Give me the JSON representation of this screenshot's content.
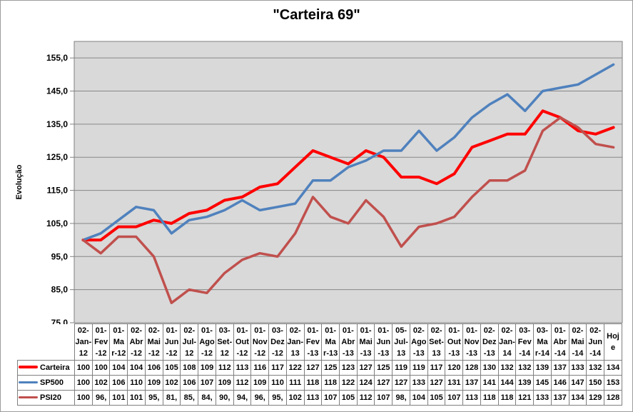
{
  "chart_data": {
    "type": "line",
    "title": "\"Carteira 69\"",
    "ylabel": "Evolução",
    "ylim": [
      75,
      160
    ],
    "ytick_step": 10,
    "ytick_labels": [
      "75,0",
      "85,0",
      "95,0",
      "105,0",
      "115,0",
      "125,0",
      "135,0",
      "145,0",
      "155,0"
    ],
    "grid": "horizontal",
    "plot_bg": "#d9d9d9",
    "gridline_color": "#878787",
    "axis_color": "#808080",
    "legend_position": "data-table-left",
    "categories": [
      "02-Jan-12",
      "01-Fev-12",
      "01-Mar-12",
      "02-Abr-12",
      "02-Mai-12",
      "01-Jun-12",
      "02-Jul-12",
      "01-Ago-12",
      "03-Set-12",
      "01-Out-12",
      "01-Nov-12",
      "03-Dez-12",
      "02-Jan-13",
      "01-Fev-13",
      "01-Mar-13",
      "01-Abr-13",
      "01-Mai-13",
      "01-Jun-13",
      "05-Jul-13",
      "02-Ago-13",
      "02-Set-13",
      "01-Out-13",
      "01-Nov-13",
      "02-Dez-13",
      "02-Jan-14",
      "03-Fev-14",
      "03-Mar-14",
      "01-Abr-14",
      "02-Mai-14",
      "02-Jun-14",
      "Hoje"
    ],
    "series": [
      {
        "name": "Carteira",
        "color": "#ff0000",
        "line_width": 4,
        "values": [
          100,
          100,
          104,
          104,
          106,
          105,
          108,
          109,
          112,
          113,
          116,
          117,
          122,
          127,
          125,
          123,
          127,
          125,
          119,
          119,
          117,
          120,
          128,
          130,
          132,
          132,
          139,
          137,
          133,
          132,
          134
        ]
      },
      {
        "name": "SP500",
        "color": "#4f81bd",
        "line_width": 3.5,
        "values": [
          100,
          102,
          106,
          110,
          109,
          102,
          106,
          107,
          109,
          112,
          109,
          110,
          111,
          118,
          118,
          122,
          124,
          127,
          127,
          133,
          127,
          131,
          137,
          141,
          144,
          139,
          145,
          146,
          147,
          150,
          153
        ]
      },
      {
        "name": "PSI20",
        "color": "#c0504d",
        "line_width": 3.5,
        "values": [
          100,
          96,
          101,
          101,
          95,
          81,
          85,
          84,
          90,
          94,
          96,
          95,
          102,
          113,
          107,
          105,
          112,
          107,
          98,
          104,
          105,
          107,
          113,
          118,
          118,
          121,
          133,
          137,
          134,
          129,
          128
        ]
      }
    ]
  },
  "table": {
    "header_lines": [
      "02-\nJan-\n12",
      "01-\nFev\n-12",
      "01-\nMa\nr-12",
      "02-\nAbr\n-12",
      "02-\nMai\n-12",
      "01-\nJun\n-12",
      "02-\nJul-\n12",
      "01-\nAgo\n-12",
      "03-\nSet-\n12",
      "01-\nOut\n-12",
      "01-\nNov\n-12",
      "03-\nDez\n-12",
      "02-\nJan-\n13",
      "01-\nFev\n-13",
      "01-\nMa\nr-13",
      "01-\nAbr\n-13",
      "01-\nMai\n-13",
      "01-\nJun\n-13",
      "05-\nJul-\n13",
      "02-\nAgo\n-13",
      "02-\nSet-\n13",
      "01-\nOut\n-13",
      "01-\nNov\n-13",
      "02-\nDez\n-13",
      "02-\nJan-\n14",
      "03-\nFev\n-14",
      "03-\nMa\nr-14",
      "01-\nAbr\n-14",
      "02-\nMai\n-14",
      "02-\nJun\n-14",
      "Hoj\ne"
    ],
    "rows": [
      {
        "label": "Carteira",
        "color": "#ff0000",
        "swatch_height": 4,
        "cells": [
          "100",
          "100",
          "104",
          "104",
          "106",
          "105",
          "108",
          "109",
          "112",
          "113",
          "116",
          "117",
          "122",
          "127",
          "125",
          "123",
          "127",
          "125",
          "119",
          "119",
          "117",
          "120",
          "128",
          "130",
          "132",
          "132",
          "139",
          "137",
          "133",
          "132",
          "134"
        ]
      },
      {
        "label": "SP500",
        "color": "#4f81bd",
        "swatch_height": 3,
        "cells": [
          "100",
          "102",
          "106",
          "110",
          "109",
          "102",
          "106",
          "107",
          "109",
          "112",
          "109",
          "110",
          "111",
          "118",
          "118",
          "122",
          "124",
          "127",
          "127",
          "133",
          "127",
          "131",
          "137",
          "141",
          "144",
          "139",
          "145",
          "146",
          "147",
          "150",
          "153"
        ]
      },
      {
        "label": "PSI20",
        "color": "#c0504d",
        "swatch_height": 3,
        "cells": [
          "100",
          "96,",
          "101",
          "101",
          "95,",
          "81,",
          "85,",
          "84,",
          "90,",
          "94,",
          "96,",
          "95,",
          "102",
          "113",
          "107",
          "105",
          "112",
          "107",
          "98,",
          "104",
          "105",
          "107",
          "113",
          "118",
          "118",
          "121",
          "133",
          "137",
          "134",
          "129",
          "128"
        ]
      }
    ]
  }
}
